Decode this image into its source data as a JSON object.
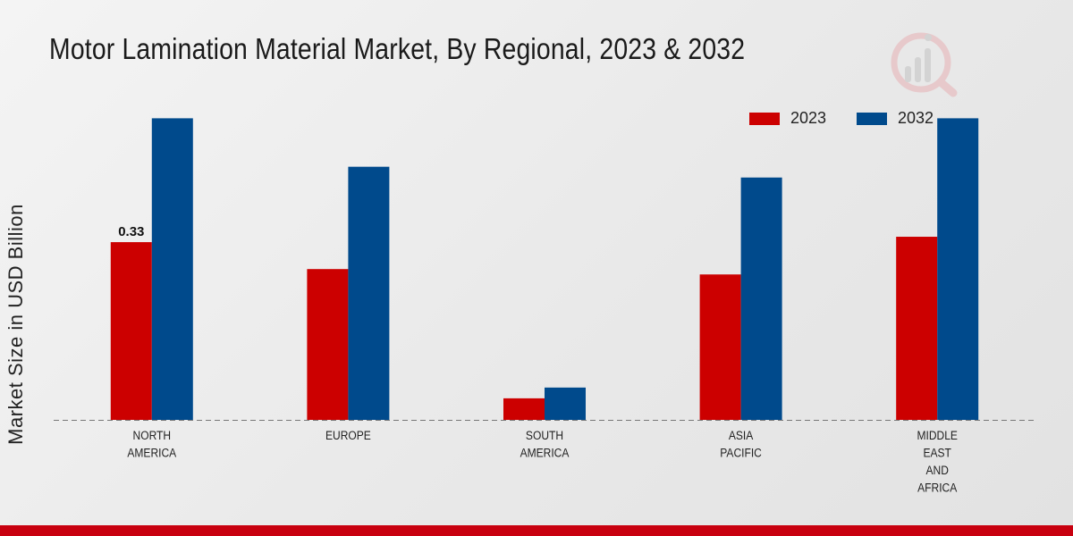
{
  "chart_data": {
    "type": "bar",
    "title": "Motor Lamination Material Market, By Regional, 2023 & 2032",
    "ylabel": "Market Size in USD Billion",
    "xlabel": "",
    "categories": [
      [
        "NORTH",
        "AMERICA"
      ],
      [
        "EUROPE"
      ],
      [
        "SOUTH",
        "AMERICA"
      ],
      [
        "ASIA",
        "PACIFIC"
      ],
      [
        "MIDDLE",
        "EAST",
        "AND",
        "AFRICA"
      ]
    ],
    "series": [
      {
        "name": "2023",
        "color": "#cc0000",
        "values": [
          0.33,
          0.28,
          0.04,
          0.27,
          0.34
        ]
      },
      {
        "name": "2032",
        "color": "#004a8c",
        "values": [
          0.56,
          0.47,
          0.06,
          0.45,
          0.56
        ]
      }
    ],
    "data_labels": [
      {
        "series": 0,
        "index": 0,
        "text": "0.33"
      }
    ],
    "ylim": [
      0,
      0.7
    ],
    "grid": false,
    "legend": "top-right"
  }
}
